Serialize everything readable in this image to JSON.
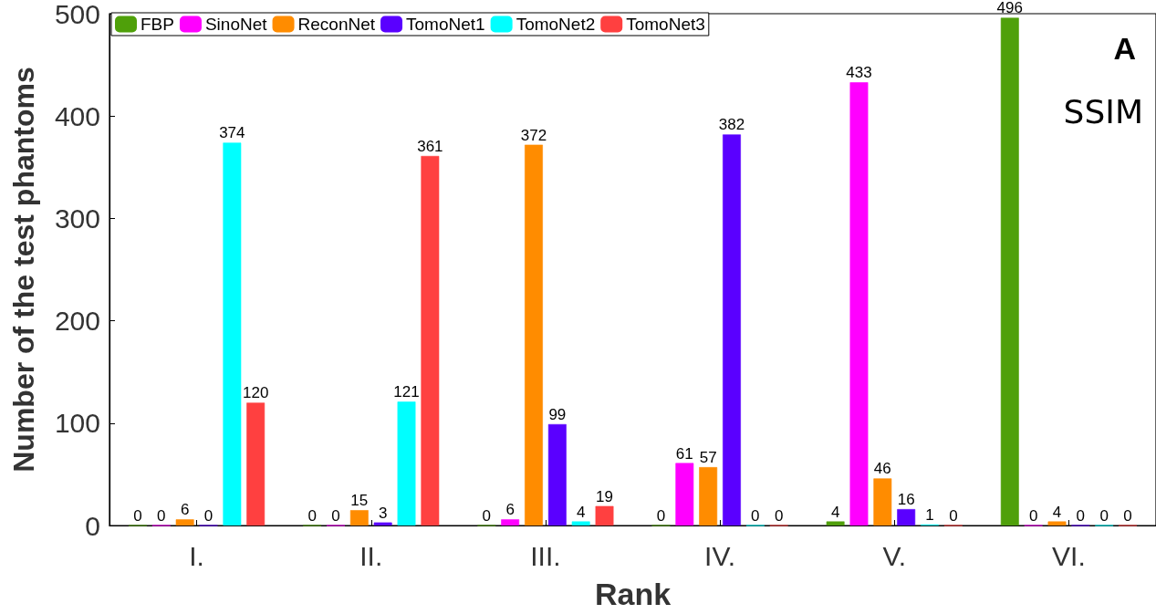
{
  "chart_data": {
    "type": "bar",
    "xlabel": "Rank",
    "ylabel": "Number of the test phantoms",
    "categories": [
      "I.",
      "II.",
      "III.",
      "IV.",
      "V.",
      "VI."
    ],
    "series": [
      {
        "name": "FBP",
        "color": "#4fa00a",
        "values": [
          0,
          0,
          0,
          0,
          4,
          496
        ]
      },
      {
        "name": "SinoNet",
        "color": "#ff00ff",
        "values": [
          0,
          0,
          6,
          61,
          433,
          0
        ]
      },
      {
        "name": "ReconNet",
        "color": "#ff8c00",
        "values": [
          6,
          15,
          372,
          57,
          46,
          4
        ]
      },
      {
        "name": "TomoNet1",
        "color": "#5a00ff",
        "values": [
          0,
          3,
          99,
          382,
          16,
          0
        ]
      },
      {
        "name": "TomoNet2",
        "color": "#00ffff",
        "values": [
          374,
          121,
          4,
          0,
          1,
          0
        ]
      },
      {
        "name": "TomoNet3",
        "color": "#ff4040",
        "values": [
          120,
          361,
          19,
          0,
          0,
          0
        ]
      }
    ],
    "ylim": [
      0,
      500
    ],
    "yticks": [
      0,
      100,
      200,
      300,
      400,
      500
    ],
    "data_labels": true,
    "grid": false,
    "legend": "top left",
    "annotations": [
      "A",
      "SSIM"
    ]
  }
}
